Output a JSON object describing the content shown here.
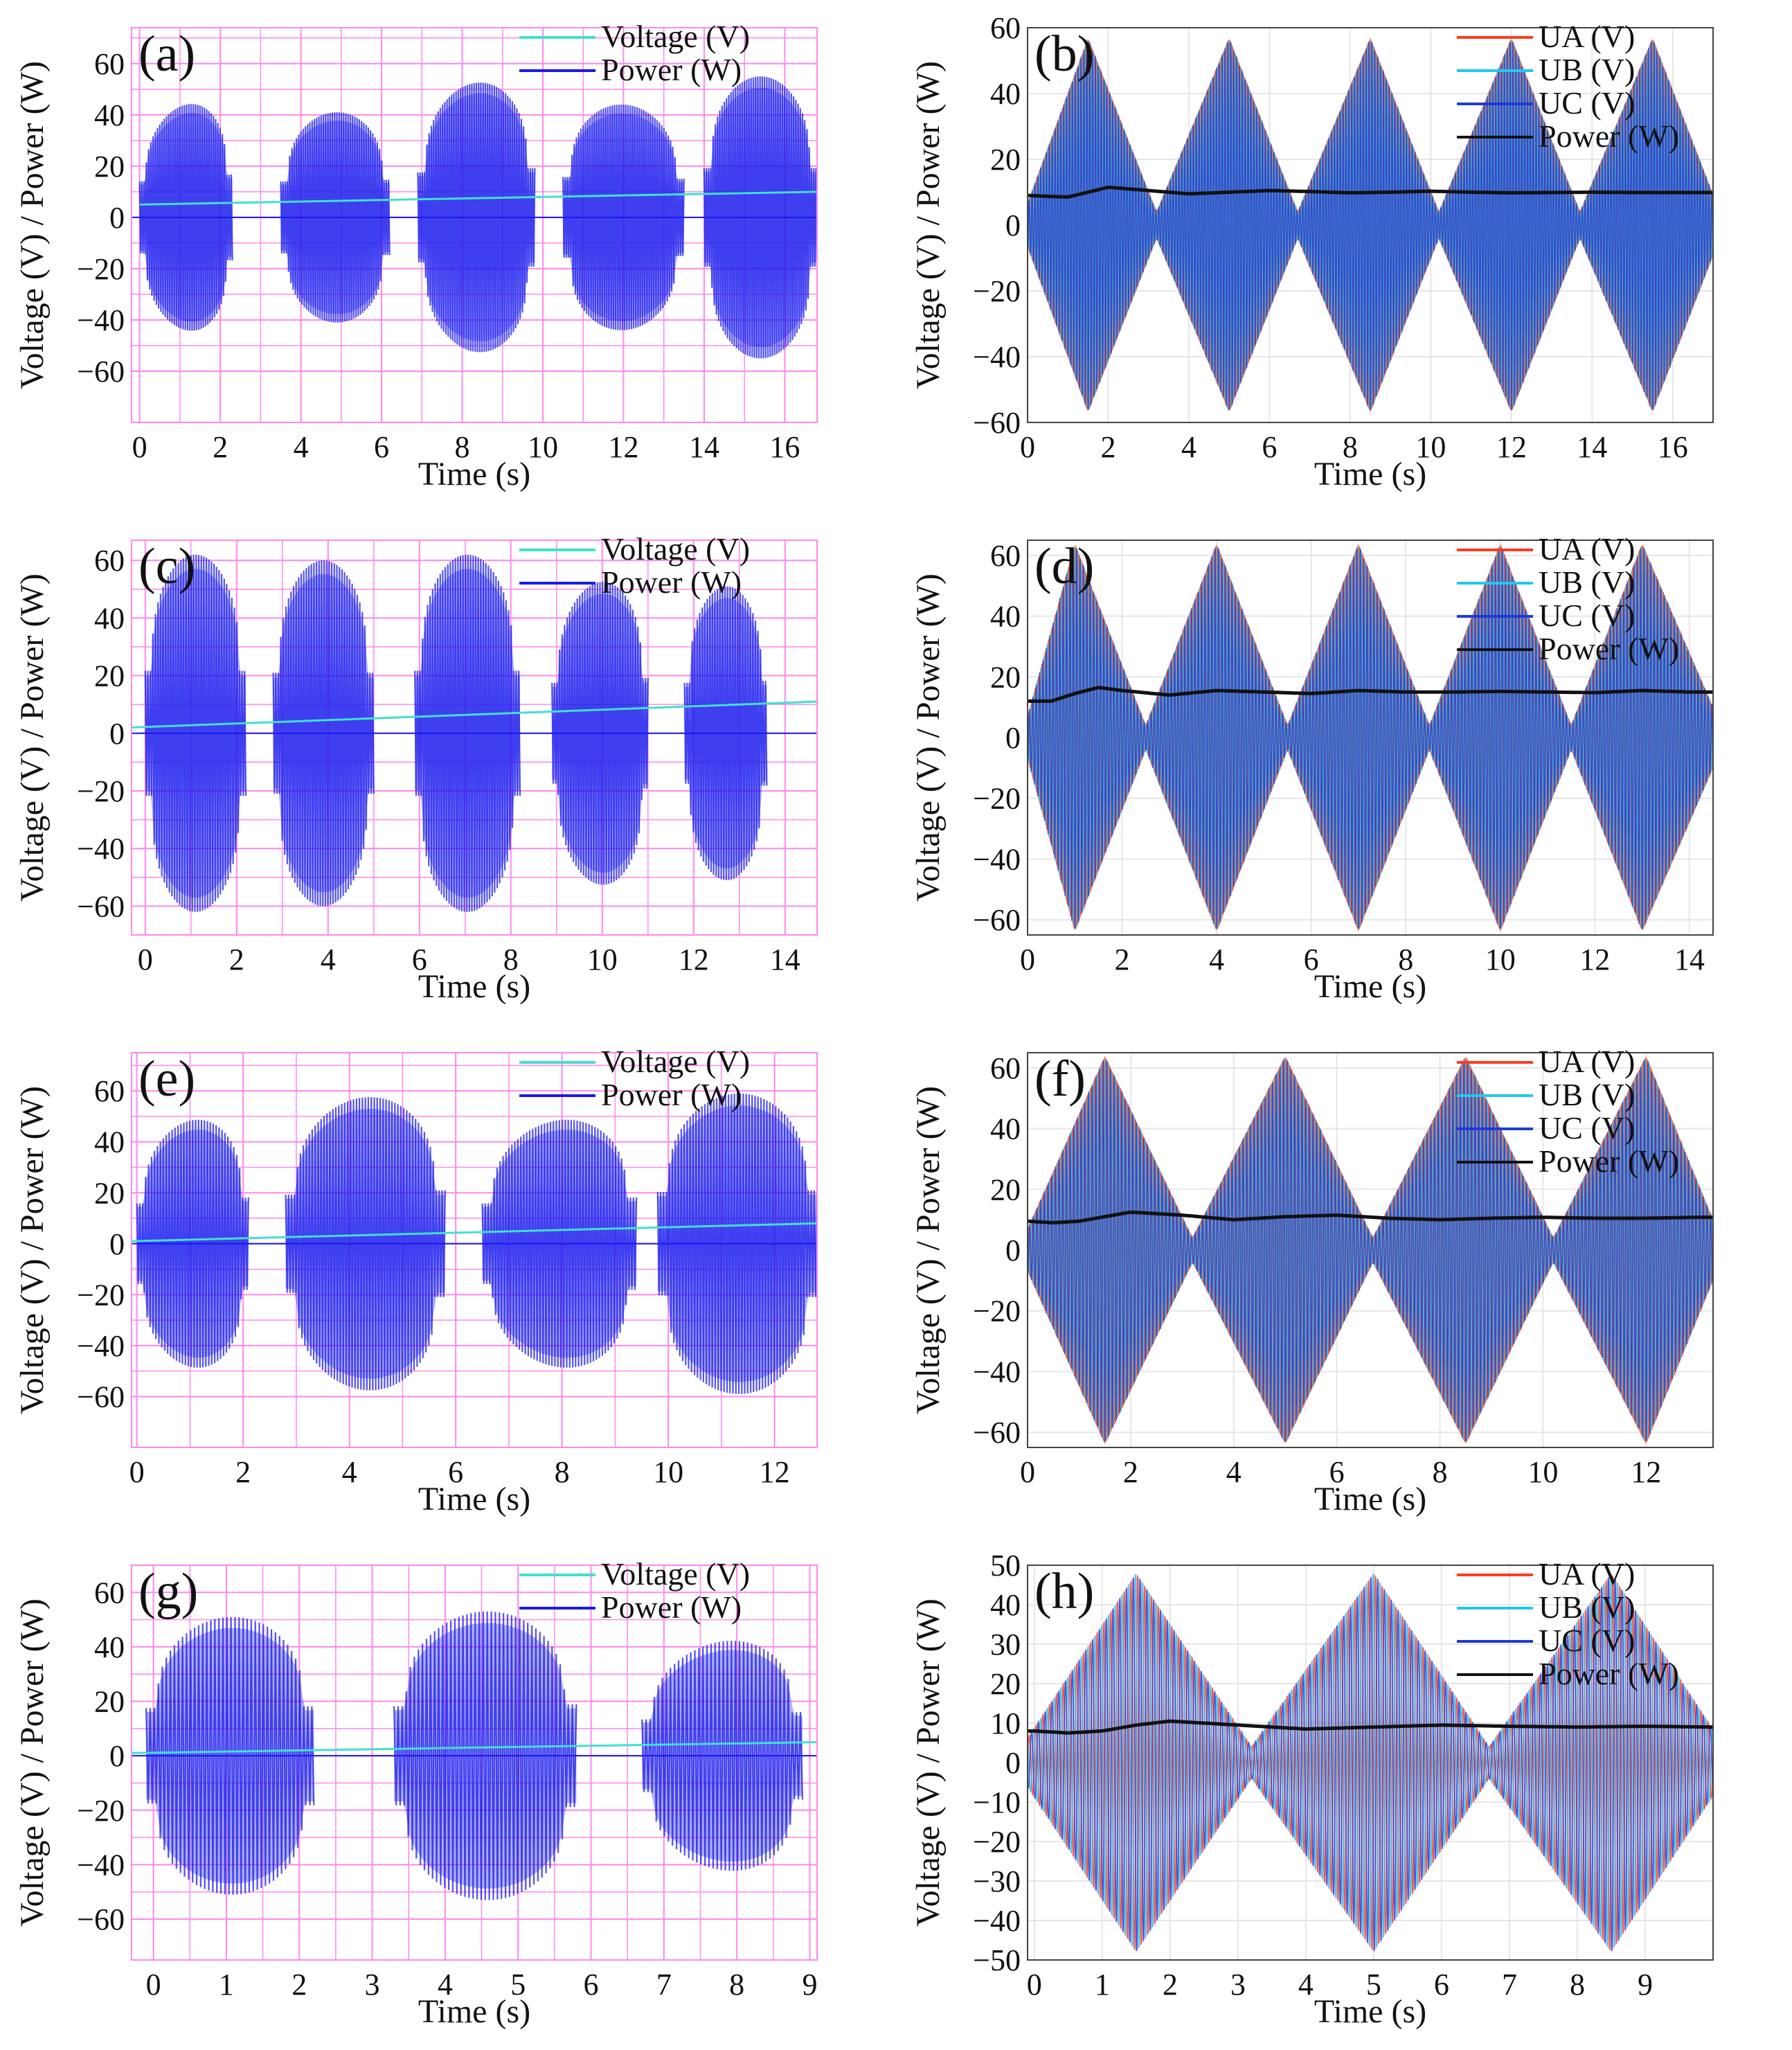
{
  "figure": {
    "background": "#ffffff",
    "experimental_style": {
      "grid_color": "#ff88ee",
      "voltage_color": "#40e0d0",
      "power_color": "#1a1aee"
    },
    "simulation_style": {
      "grid_color": "#e6e6e6",
      "UA_color": "#ff3b1f",
      "UB_color": "#22c8f0",
      "UC_color": "#1f3ad8",
      "Power_color": "#111111",
      "overlap_color": "#ff7f3f"
    }
  },
  "chart_data": [
    {
      "id": "a",
      "panel_label": "(a)",
      "type": "line",
      "kind": "experimental",
      "xlabel": "Time (s)",
      "ylabel": "Voltage (V) / Power (W)",
      "xlim": [
        -0.2,
        16.8
      ],
      "ylim": [
        -80,
        74
      ],
      "xticks": [
        0,
        2,
        4,
        6,
        8,
        10,
        12,
        14,
        16
      ],
      "yticks": [
        -60,
        -40,
        -20,
        0,
        20,
        40,
        60
      ],
      "grid": true,
      "legend": [
        "Voltage (V)",
        "Power (W)"
      ],
      "series": [
        {
          "name": "Voltage (V)",
          "x": [
            0,
            16.8
          ],
          "values": [
            5,
            10
          ]
        },
        {
          "name": "Power (W)",
          "bursts": [
            {
              "x0": 0.0,
              "x1": 2.3,
              "amp": [
                40,
                48
              ]
            },
            {
              "x0": 3.5,
              "x1": 6.2,
              "amp": [
                40,
                42
              ]
            },
            {
              "x0": 6.9,
              "x1": 9.8,
              "amp": [
                50,
                55
              ]
            },
            {
              "x0": 10.5,
              "x1": 13.5,
              "amp": [
                45,
                43
              ]
            },
            {
              "x0": 14.0,
              "x1": 16.8,
              "amp": [
                55,
                55
              ]
            }
          ],
          "baseline": 0
        }
      ]
    },
    {
      "id": "b",
      "panel_label": "(b)",
      "type": "line",
      "kind": "simulation",
      "xlabel": "Time (s)",
      "ylabel": "Voltage (V) / Power (W)",
      "xlim": [
        0,
        17
      ],
      "ylim": [
        -60,
        60
      ],
      "xticks": [
        0,
        2,
        4,
        6,
        8,
        10,
        12,
        14,
        16
      ],
      "yticks": [
        -60,
        -40,
        -20,
        0,
        20,
        40,
        60
      ],
      "grid": true,
      "legend": [
        "UA (V)",
        "UB (V)",
        "UC (V)",
        "Power (W)"
      ],
      "envelope": {
        "peaks": [
          1.5,
          5.0,
          8.5,
          12.0,
          15.5
        ],
        "minima": [
          3.2,
          6.7,
          10.2,
          13.7
        ],
        "peak_amp": 57,
        "min_amp": 4
      },
      "series": [
        {
          "name": "Power (W)",
          "x": [
            0,
            1,
            2,
            3,
            4,
            5,
            6,
            7,
            8,
            9,
            10,
            11,
            12,
            13,
            14,
            15,
            16,
            17
          ],
          "values": [
            9,
            8.5,
            11.5,
            10.5,
            9.5,
            10,
            10.5,
            10.2,
            9.8,
            10,
            10.3,
            10,
            9.8,
            9.9,
            10,
            9.9,
            9.9,
            9.9
          ]
        }
      ]
    },
    {
      "id": "c",
      "panel_label": "(c)",
      "type": "line",
      "kind": "experimental",
      "xlabel": "Time (s)",
      "ylabel": "Voltage (V) / Power (W)",
      "xlim": [
        -0.3,
        14.7
      ],
      "ylim": [
        -70,
        67
      ],
      "xticks": [
        0,
        2,
        4,
        6,
        8,
        10,
        12,
        14
      ],
      "yticks": [
        -60,
        -40,
        -20,
        0,
        20,
        40,
        60
      ],
      "grid": true,
      "legend": [
        "Voltage (V)",
        "Power (W)"
      ],
      "series": [
        {
          "name": "Voltage (V)",
          "x": [
            -0.3,
            14.7
          ],
          "values": [
            2,
            11
          ]
        },
        {
          "name": "Power (W)",
          "bursts": [
            {
              "x0": 0.0,
              "x1": 2.2,
              "amp": [
                62,
                62
              ]
            },
            {
              "x0": 2.8,
              "x1": 5.0,
              "amp": [
                60,
                60
              ]
            },
            {
              "x0": 5.9,
              "x1": 8.2,
              "amp": [
                62,
                62
              ]
            },
            {
              "x0": 8.9,
              "x1": 11.0,
              "amp": [
                50,
                55
              ]
            },
            {
              "x0": 11.8,
              "x1": 13.6,
              "amp": [
                50,
                52
              ]
            }
          ],
          "baseline": 0
        }
      ]
    },
    {
      "id": "d",
      "panel_label": "(d)",
      "type": "line",
      "kind": "simulation",
      "xlabel": "Time (s)",
      "ylabel": "Voltage (V) / Power (W)",
      "xlim": [
        0,
        14.5
      ],
      "ylim": [
        -65,
        65
      ],
      "xticks": [
        0,
        2,
        4,
        6,
        8,
        10,
        12,
        14
      ],
      "yticks": [
        -60,
        -40,
        -20,
        0,
        20,
        40,
        60
      ],
      "grid": true,
      "legend": [
        "UA (V)",
        "UB (V)",
        "UC (V)",
        "Power (W)"
      ],
      "envelope": {
        "peaks": [
          1.0,
          4.0,
          7.0,
          10.0,
          13.0
        ],
        "minima": [
          2.5,
          5.5,
          8.5,
          11.5
        ],
        "peak_amp": 64,
        "min_amp": 4
      },
      "series": [
        {
          "name": "Power (W)",
          "x": [
            0,
            0.5,
            1,
            1.5,
            2,
            3,
            4,
            5,
            6,
            7,
            8,
            9,
            10,
            11,
            12,
            13,
            14,
            14.5
          ],
          "values": [
            12,
            12,
            14.5,
            16.5,
            15.5,
            14,
            15.5,
            15,
            14.5,
            15.5,
            15,
            15,
            15.2,
            15,
            14.8,
            15.5,
            15,
            15
          ]
        }
      ]
    },
    {
      "id": "e",
      "panel_label": "(e)",
      "type": "line",
      "kind": "experimental",
      "xlabel": "Time (s)",
      "ylabel": "Voltage (V) / Power (W)",
      "xlim": [
        -0.1,
        12.8
      ],
      "ylim": [
        -80,
        75
      ],
      "xticks": [
        0,
        2,
        4,
        6,
        8,
        10,
        12
      ],
      "yticks": [
        -60,
        -40,
        -20,
        0,
        20,
        40,
        60
      ],
      "grid": true,
      "legend": [
        "Voltage (V)",
        "Power (W)"
      ],
      "series": [
        {
          "name": "Voltage (V)",
          "x": [
            -0.1,
            12.8
          ],
          "values": [
            1,
            8
          ]
        },
        {
          "name": "Power (W)",
          "bursts": [
            {
              "x0": 0.0,
              "x1": 2.1,
              "amp": [
                45,
                52
              ]
            },
            {
              "x0": 2.8,
              "x1": 5.8,
              "amp": [
                55,
                60
              ]
            },
            {
              "x0": 6.5,
              "x1": 9.4,
              "amp": [
                45,
                52
              ]
            },
            {
              "x0": 9.8,
              "x1": 12.8,
              "amp": [
                58,
                60
              ]
            }
          ],
          "baseline": 0
        }
      ]
    },
    {
      "id": "f",
      "panel_label": "(f)",
      "type": "line",
      "kind": "simulation",
      "xlabel": "Time (s)",
      "ylabel": "Voltage (V) / Power (W)",
      "xlim": [
        0,
        13.3
      ],
      "ylim": [
        -65,
        65
      ],
      "xticks": [
        0,
        2,
        4,
        6,
        8,
        10,
        12
      ],
      "yticks": [
        -60,
        -40,
        -20,
        0,
        20,
        40,
        60
      ],
      "grid": true,
      "legend": [
        "UA (V)",
        "UB (V)",
        "UC (V)",
        "Power (W)"
      ],
      "envelope": {
        "peaks": [
          1.5,
          5.0,
          8.5,
          12.0
        ],
        "minima": [
          3.2,
          6.7,
          10.2
        ],
        "peak_amp": 64,
        "min_amp": 4
      },
      "series": [
        {
          "name": "Power (W)",
          "x": [
            0,
            0.5,
            1,
            2,
            3,
            4,
            5,
            6,
            7,
            8,
            9,
            10,
            11,
            12,
            13,
            13.3
          ],
          "values": [
            9.5,
            9,
            9.5,
            12.5,
            11.5,
            10,
            11,
            11.5,
            10.5,
            10,
            10.5,
            10.8,
            10.5,
            10.5,
            10.8,
            10.8
          ]
        }
      ]
    },
    {
      "id": "g",
      "panel_label": "(g)",
      "type": "line",
      "kind": "experimental",
      "xlabel": "Time (s)",
      "ylabel": "Voltage (V) / Power (W)",
      "xlim": [
        -0.3,
        9.1
      ],
      "ylim": [
        -75,
        70
      ],
      "xticks": [
        0,
        1,
        2,
        3,
        4,
        5,
        6,
        7,
        8,
        9
      ],
      "yticks": [
        -60,
        -40,
        -20,
        0,
        20,
        40,
        60
      ],
      "grid": true,
      "legend": [
        "Voltage (V)",
        "Power (W)"
      ],
      "series": [
        {
          "name": "Voltage (V)",
          "x": [
            -0.3,
            9.1
          ],
          "values": [
            1,
            5
          ]
        },
        {
          "name": "Power (W)",
          "bursts": [
            {
              "x0": -0.1,
              "x1": 2.2,
              "amp": [
                50,
                52
              ]
            },
            {
              "x0": 3.3,
              "x1": 5.8,
              "amp": [
                52,
                54
              ]
            },
            {
              "x0": 6.7,
              "x1": 8.9,
              "amp": [
                38,
                46
              ]
            }
          ],
          "baseline": 0
        }
      ]
    },
    {
      "id": "h",
      "panel_label": "(h)",
      "type": "line",
      "kind": "simulation",
      "xlabel": "Time (s)",
      "ylabel": "Voltage (V) / Power (W)",
      "xlim": [
        -0.1,
        10
      ],
      "ylim": [
        -50,
        50
      ],
      "xticks": [
        0,
        1,
        2,
        3,
        4,
        5,
        6,
        7,
        8,
        9
      ],
      "yticks": [
        -50,
        -40,
        -30,
        -20,
        -10,
        0,
        10,
        20,
        30,
        40,
        50
      ],
      "grid": true,
      "legend": [
        "UA (V)",
        "UB (V)",
        "UC (V)",
        "Power (W)"
      ],
      "envelope": {
        "peaks": [
          1.5,
          5.0,
          8.5
        ],
        "minima": [
          3.2,
          6.7
        ],
        "peak_amp": 48,
        "min_amp": 4
      },
      "series": [
        {
          "name": "Power (W)",
          "x": [
            0,
            0.5,
            1,
            1.5,
            2,
            3,
            4,
            5,
            6,
            7,
            8,
            9,
            10
          ],
          "values": [
            8,
            7.5,
            8,
            9.5,
            10.5,
            9.5,
            8.5,
            9,
            9.5,
            9.2,
            9,
            9.2,
            9
          ]
        }
      ]
    }
  ]
}
